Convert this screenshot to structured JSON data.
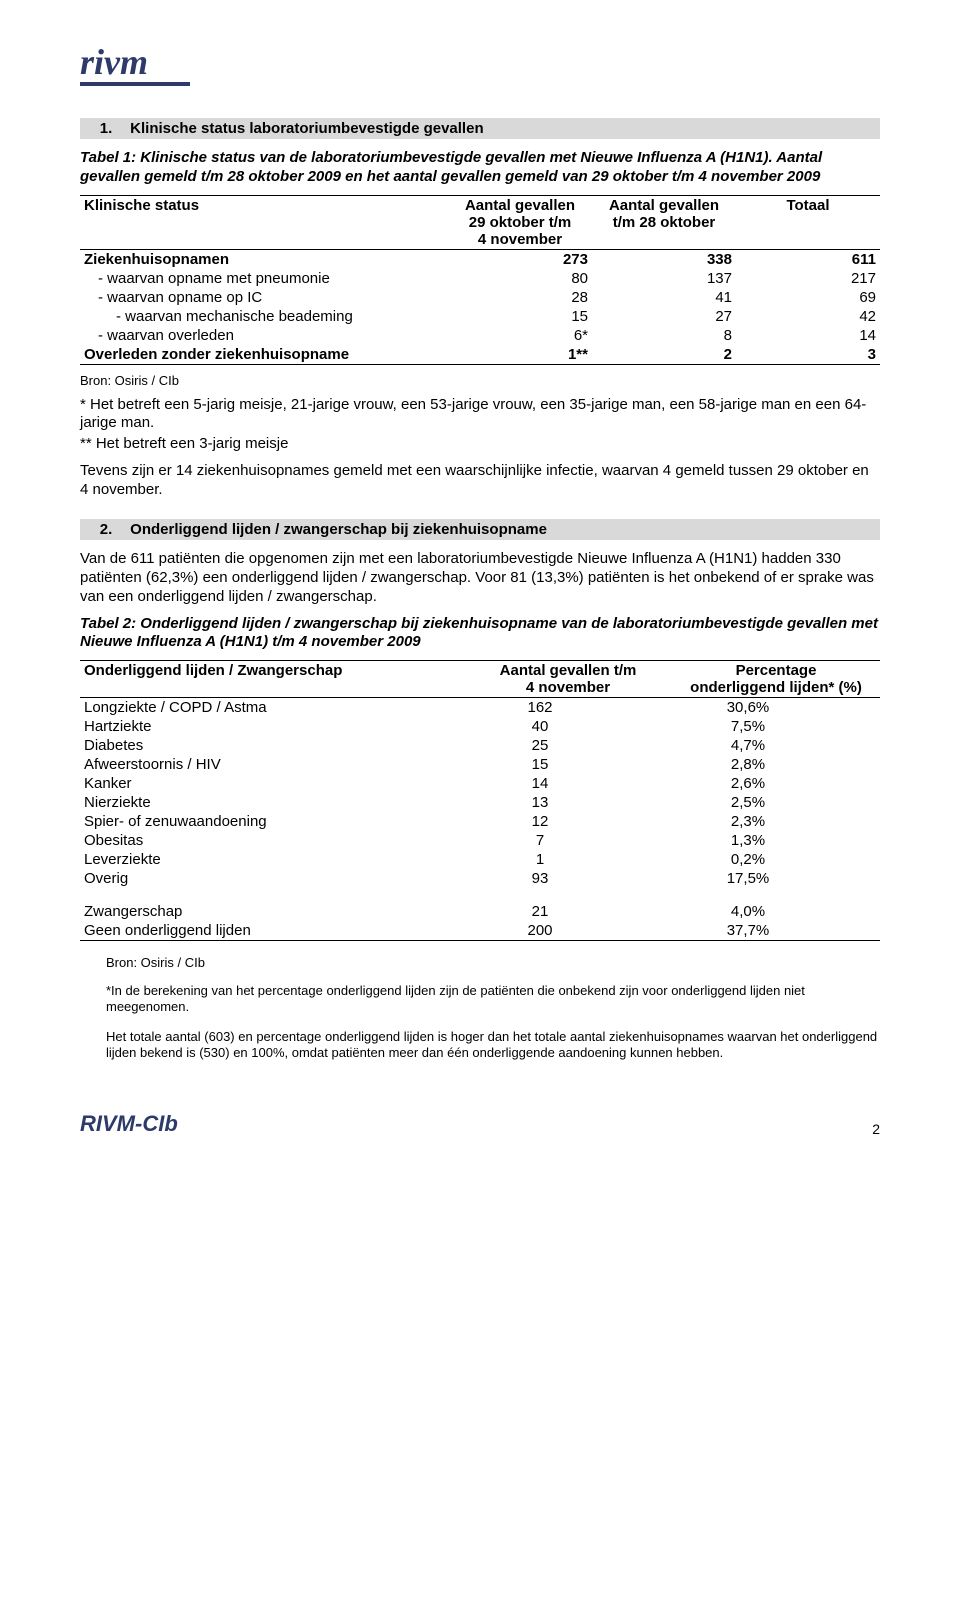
{
  "logo": {
    "text": "rivm",
    "color": "#2d3a6a"
  },
  "section1": {
    "number": "1.",
    "title": "Klinische status laboratoriumbevestigde gevallen"
  },
  "table1_caption": "Tabel 1: Klinische status van de laboratoriumbevestigde gevallen met Nieuwe Influenza A (H1N1). Aantal gevallen gemeld t/m 28 oktober 2009 en het aantal gevallen gemeld van 29 oktober t/m 4 november 2009",
  "table1": {
    "headers": {
      "col1": "Klinische status",
      "col2a": "Aantal gevallen",
      "col2b": "29 oktober t/m",
      "col2c": "4 november",
      "col3a": "Aantal gevallen",
      "col3b": "t/m 28 oktober",
      "col4": "Totaal"
    },
    "rows": [
      {
        "label": "Ziekenhuisopnamen",
        "bold": true,
        "indent": 0,
        "v1": "273",
        "v2": "338",
        "v3": "611"
      },
      {
        "label": "- waarvan opname met pneumonie",
        "bold": false,
        "indent": 1,
        "v1": "80",
        "v2": "137",
        "v3": "217"
      },
      {
        "label": "- waarvan opname op IC",
        "bold": false,
        "indent": 1,
        "v1": "28",
        "v2": "41",
        "v3": "69"
      },
      {
        "label": "- waarvan mechanische beademing",
        "bold": false,
        "indent": 2,
        "v1": "15",
        "v2": "27",
        "v3": "42"
      },
      {
        "label": "- waarvan overleden",
        "bold": false,
        "indent": 1,
        "v1": "6*",
        "v2": "8",
        "v3": "14"
      },
      {
        "label": "Overleden zonder ziekenhuisopname",
        "bold": true,
        "indent": 0,
        "v1": "1**",
        "v2": "2",
        "v3": "3"
      }
    ]
  },
  "source1": "Bron: Osiris / CIb",
  "footnote1a": "* Het betreft een 5-jarig meisje, 21-jarige vrouw, een 53-jarige vrouw, een 35-jarige man, een 58-jarige man en een 64-jarige man.",
  "footnote1b": "** Het betreft een 3-jarig meisje",
  "paragraph1": "Tevens zijn er 14 ziekenhuisopnames gemeld met een waarschijnlijke infectie, waarvan 4 gemeld tussen 29 oktober en 4 november.",
  "section2": {
    "number": "2.",
    "title": "Onderliggend lijden / zwangerschap bij ziekenhuisopname"
  },
  "paragraph2": "Van de 611 patiënten die opgenomen zijn met een laboratoriumbevestigde Nieuwe Influenza A (H1N1) hadden 330 patiënten (62,3%) een onderliggend lijden / zwangerschap. Voor 81 (13,3%) patiënten is het onbekend of er sprake was van een onderliggend lijden / zwangerschap.",
  "table2_caption": "Tabel 2: Onderliggend lijden / zwangerschap bij ziekenhuisopname van de laboratoriumbevestigde gevallen met Nieuwe Influenza A (H1N1) t/m 4 november 2009",
  "table2": {
    "headers": {
      "col1": "Onderliggend lijden / Zwangerschap",
      "col2a": "Aantal gevallen t/m",
      "col2b": "4 november",
      "col3a": "Percentage",
      "col3b": "onderliggend lijden* (%)"
    },
    "rows": [
      {
        "label": "Longziekte / COPD / Astma",
        "v1": "162",
        "v2": "30,6%"
      },
      {
        "label": "Hartziekte",
        "v1": "40",
        "v2": "7,5%"
      },
      {
        "label": "Diabetes",
        "v1": "25",
        "v2": "4,7%"
      },
      {
        "label": "Afweerstoornis / HIV",
        "v1": "15",
        "v2": "2,8%"
      },
      {
        "label": "Kanker",
        "v1": "14",
        "v2": "2,6%"
      },
      {
        "label": "Nierziekte",
        "v1": "13",
        "v2": "2,5%"
      },
      {
        "label": "Spier- of zenuwaandoening",
        "v1": "12",
        "v2": "2,3%"
      },
      {
        "label": "Obesitas",
        "v1": "7",
        "v2": "1,3%"
      },
      {
        "label": "Leverziekte",
        "v1": "1",
        "v2": "0,2%"
      },
      {
        "label": "Overig",
        "v1": "93",
        "v2": "17,5%"
      }
    ],
    "rows2": [
      {
        "label": "Zwangerschap",
        "v1": "21",
        "v2": "4,0%"
      },
      {
        "label": "Geen onderliggend lijden",
        "v1": "200",
        "v2": "37,7%"
      }
    ]
  },
  "source2": "Bron: Osiris / CIb",
  "footnote2a": "*In de berekening van het percentage onderliggend lijden zijn de patiënten die onbekend zijn voor onderliggend lijden niet meegenomen.",
  "footnote2b": "Het totale aantal (603) en percentage onderliggend lijden is hoger dan het totale aantal ziekenhuisopnames waarvan het onderliggend lijden bekend is (530) en 100%, omdat patiënten meer dan één onderliggende aandoening kunnen hebben.",
  "footer": {
    "logo": "RIVM-CIb",
    "page": "2"
  }
}
